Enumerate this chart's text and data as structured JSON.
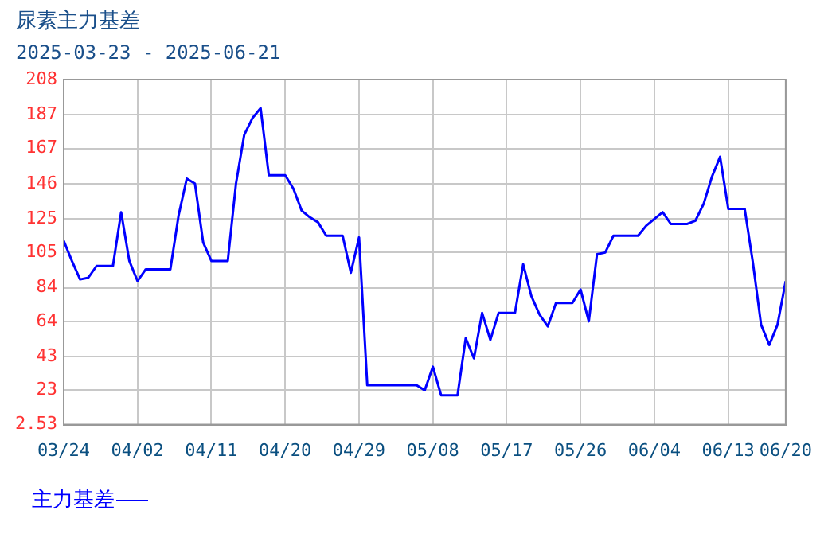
{
  "chart_data": {
    "type": "line",
    "title": "尿素主力基差",
    "subtitle": "2025-03-23 - 2025-06-21",
    "x": [
      "2025-03-24",
      "2025-03-25",
      "2025-03-26",
      "2025-03-27",
      "2025-03-28",
      "2025-03-29",
      "2025-03-30",
      "2025-03-31",
      "2025-04-01",
      "2025-04-02",
      "2025-04-03",
      "2025-04-04",
      "2025-04-05",
      "2025-04-06",
      "2025-04-07",
      "2025-04-08",
      "2025-04-09",
      "2025-04-10",
      "2025-04-11",
      "2025-04-12",
      "2025-04-13",
      "2025-04-14",
      "2025-04-15",
      "2025-04-16",
      "2025-04-17",
      "2025-04-18",
      "2025-04-19",
      "2025-04-20",
      "2025-04-21",
      "2025-04-22",
      "2025-04-23",
      "2025-04-24",
      "2025-04-25",
      "2025-04-26",
      "2025-04-27",
      "2025-04-28",
      "2025-04-29",
      "2025-04-30",
      "2025-05-01",
      "2025-05-02",
      "2025-05-03",
      "2025-05-04",
      "2025-05-05",
      "2025-05-06",
      "2025-05-07",
      "2025-05-08",
      "2025-05-09",
      "2025-05-10",
      "2025-05-11",
      "2025-05-12",
      "2025-05-13",
      "2025-05-14",
      "2025-05-15",
      "2025-05-16",
      "2025-05-17",
      "2025-05-18",
      "2025-05-19",
      "2025-05-20",
      "2025-05-21",
      "2025-05-22",
      "2025-05-23",
      "2025-05-24",
      "2025-05-25",
      "2025-05-26",
      "2025-05-27",
      "2025-05-28",
      "2025-05-29",
      "2025-05-30",
      "2025-05-31",
      "2025-06-01",
      "2025-06-02",
      "2025-06-03",
      "2025-06-04",
      "2025-06-05",
      "2025-06-06",
      "2025-06-07",
      "2025-06-08",
      "2025-06-09",
      "2025-06-10",
      "2025-06-11",
      "2025-06-12",
      "2025-06-13",
      "2025-06-14",
      "2025-06-15",
      "2025-06-16",
      "2025-06-17",
      "2025-06-18",
      "2025-06-19",
      "2025-06-20"
    ],
    "series": [
      {
        "name": "主力基差",
        "color": "#0000ff",
        "values": [
          112,
          100,
          89,
          90,
          97,
          97,
          97,
          129,
          100,
          88,
          95,
          95,
          95,
          95,
          127,
          149,
          146,
          111,
          100,
          100,
          100,
          146,
          175,
          185,
          191,
          151,
          151,
          151,
          143,
          130,
          126,
          123,
          115,
          115,
          115,
          93,
          114,
          26,
          26,
          26,
          26,
          26,
          26,
          26,
          23,
          37,
          20,
          20,
          20,
          54,
          42,
          69,
          53,
          69,
          69,
          69,
          98,
          79,
          68,
          61,
          75,
          75,
          75,
          83,
          64,
          104,
          105,
          115,
          115,
          115,
          115,
          121,
          125,
          129,
          122,
          122,
          122,
          124,
          134,
          150,
          162,
          131,
          131,
          131,
          99,
          62,
          50,
          62,
          88
        ]
      }
    ],
    "xlim": [
      "2025-03-24",
      "2025-06-20"
    ],
    "xticks": [
      {
        "value": "2025-03-24",
        "label": "03/24"
      },
      {
        "value": "2025-04-02",
        "label": "04/02"
      },
      {
        "value": "2025-04-11",
        "label": "04/11"
      },
      {
        "value": "2025-04-20",
        "label": "04/20"
      },
      {
        "value": "2025-04-29",
        "label": "04/29"
      },
      {
        "value": "2025-05-08",
        "label": "05/08"
      },
      {
        "value": "2025-05-17",
        "label": "05/17"
      },
      {
        "value": "2025-05-26",
        "label": "05/26"
      },
      {
        "value": "2025-06-04",
        "label": "06/04"
      },
      {
        "value": "2025-06-13",
        "label": "06/13"
      },
      {
        "value": "2025-06-20",
        "label": "06/20"
      }
    ],
    "ylim": [
      2.53,
      208
    ],
    "yticks": [
      2.53,
      23,
      43,
      64,
      84,
      105,
      125,
      146,
      167,
      187,
      208
    ],
    "grid": true,
    "legend": "bottom left",
    "marker": "none",
    "line_style": "solid"
  }
}
